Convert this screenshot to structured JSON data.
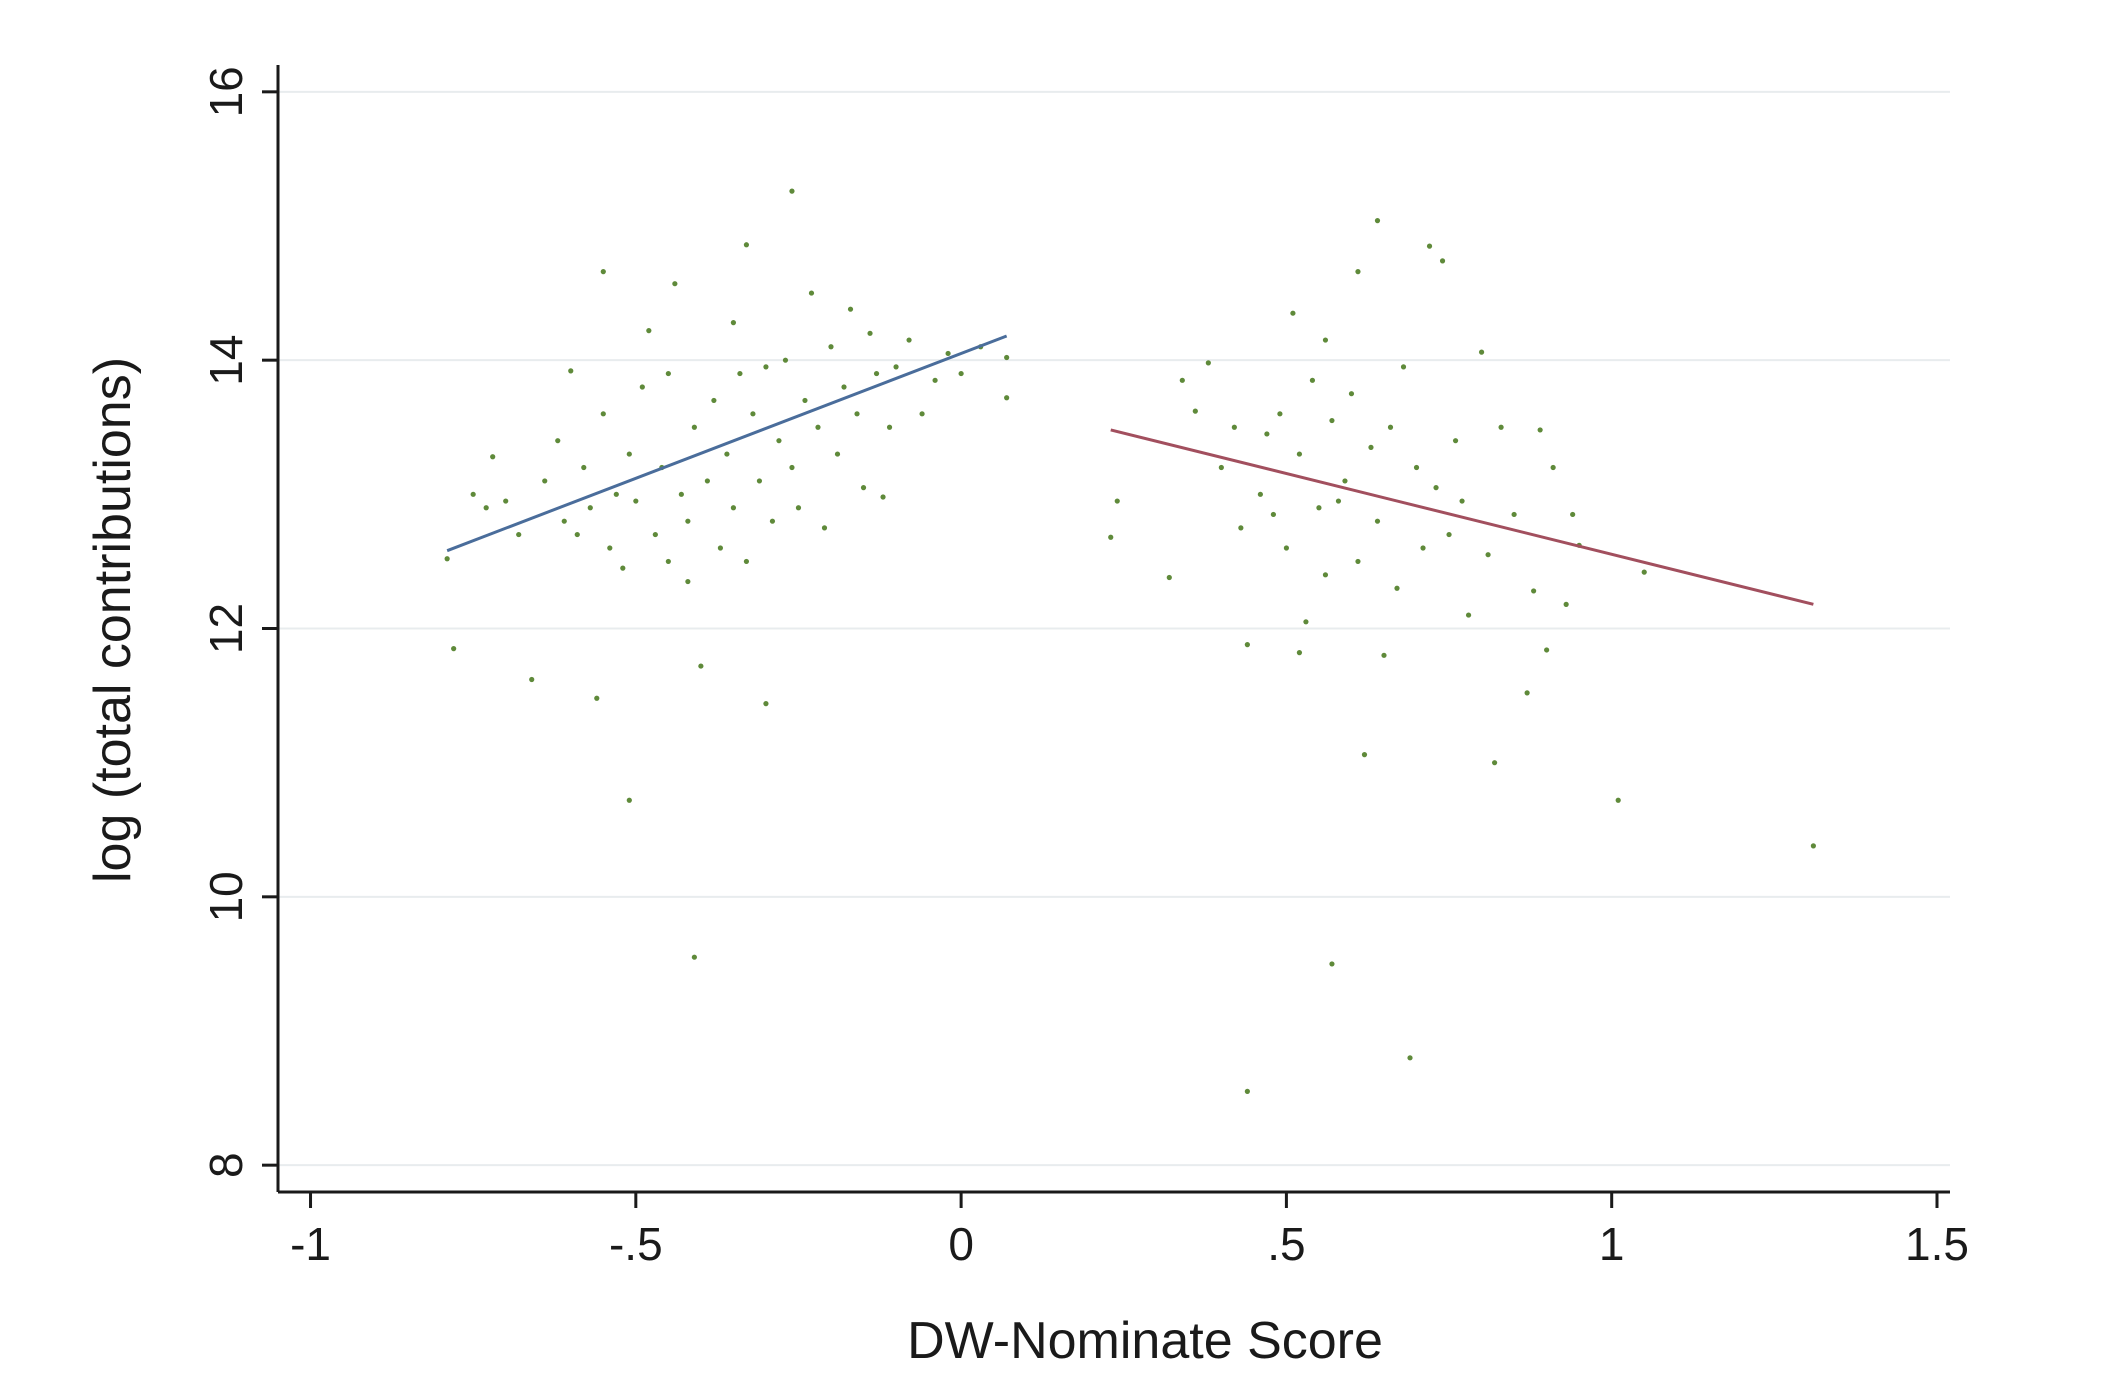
{
  "chart_data": {
    "type": "scatter",
    "title": "",
    "xlabel": "DW-Nominate Score",
    "ylabel": "log (total contributions)",
    "xlim": [
      -1.05,
      1.52
    ],
    "ylim": [
      7.8,
      16.2
    ],
    "grid": true,
    "x_ticks": [
      {
        "value": -1,
        "label": "-1"
      },
      {
        "value": -0.5,
        "label": "-.5"
      },
      {
        "value": 0,
        "label": "0"
      },
      {
        "value": 0.5,
        "label": ".5"
      },
      {
        "value": 1,
        "label": "1"
      },
      {
        "value": 1.5,
        "label": "1.5"
      }
    ],
    "y_ticks": [
      {
        "value": 8,
        "label": "8"
      },
      {
        "value": 10,
        "label": "10"
      },
      {
        "value": 12,
        "label": "12"
      },
      {
        "value": 14,
        "label": "14"
      },
      {
        "value": 16,
        "label": "16"
      }
    ],
    "colors": {
      "points": "#5f8a3a",
      "fit_left": "#4a6d9b",
      "fit_right": "#a24f5e",
      "grid": "#e8ecee",
      "axis": "#1a1a1a"
    },
    "points": [
      [
        -0.79,
        12.52
      ],
      [
        -0.78,
        11.85
      ],
      [
        -0.75,
        13.0
      ],
      [
        -0.73,
        12.9
      ],
      [
        -0.72,
        13.28
      ],
      [
        -0.7,
        12.95
      ],
      [
        -0.68,
        12.7
      ],
      [
        -0.66,
        11.62
      ],
      [
        -0.64,
        13.1
      ],
      [
        -0.62,
        13.4
      ],
      [
        -0.61,
        12.8
      ],
      [
        -0.6,
        13.92
      ],
      [
        -0.59,
        12.7
      ],
      [
        -0.58,
        13.2
      ],
      [
        -0.57,
        12.9
      ],
      [
        -0.56,
        11.48
      ],
      [
        -0.55,
        13.6
      ],
      [
        -0.55,
        14.66
      ],
      [
        -0.54,
        12.6
      ],
      [
        -0.53,
        13.0
      ],
      [
        -0.52,
        12.45
      ],
      [
        -0.51,
        13.3
      ],
      [
        -0.51,
        10.72
      ],
      [
        -0.5,
        12.95
      ],
      [
        -0.49,
        13.8
      ],
      [
        -0.48,
        14.22
      ],
      [
        -0.47,
        12.7
      ],
      [
        -0.46,
        13.2
      ],
      [
        -0.45,
        12.5
      ],
      [
        -0.45,
        13.9
      ],
      [
        -0.44,
        14.57
      ],
      [
        -0.43,
        13.0
      ],
      [
        -0.42,
        12.8
      ],
      [
        -0.42,
        12.35
      ],
      [
        -0.41,
        13.5
      ],
      [
        -0.41,
        9.55
      ],
      [
        -0.4,
        11.72
      ],
      [
        -0.39,
        13.1
      ],
      [
        -0.38,
        13.7
      ],
      [
        -0.37,
        12.6
      ],
      [
        -0.36,
        13.3
      ],
      [
        -0.35,
        12.9
      ],
      [
        -0.35,
        14.28
      ],
      [
        -0.34,
        13.9
      ],
      [
        -0.33,
        12.5
      ],
      [
        -0.33,
        14.86
      ],
      [
        -0.32,
        13.6
      ],
      [
        -0.31,
        13.1
      ],
      [
        -0.3,
        13.95
      ],
      [
        -0.3,
        11.44
      ],
      [
        -0.29,
        12.8
      ],
      [
        -0.28,
        13.4
      ],
      [
        -0.27,
        14.0
      ],
      [
        -0.26,
        13.2
      ],
      [
        -0.26,
        15.26
      ],
      [
        -0.25,
        12.9
      ],
      [
        -0.24,
        13.7
      ],
      [
        -0.23,
        14.5
      ],
      [
        -0.22,
        13.5
      ],
      [
        -0.21,
        12.75
      ],
      [
        -0.2,
        14.1
      ],
      [
        -0.19,
        13.3
      ],
      [
        -0.18,
        13.8
      ],
      [
        -0.17,
        14.38
      ],
      [
        -0.16,
        13.6
      ],
      [
        -0.15,
        13.05
      ],
      [
        -0.14,
        14.2
      ],
      [
        -0.13,
        13.9
      ],
      [
        -0.12,
        12.98
      ],
      [
        -0.11,
        13.5
      ],
      [
        -0.1,
        13.95
      ],
      [
        -0.08,
        14.15
      ],
      [
        -0.06,
        13.6
      ],
      [
        -0.04,
        13.85
      ],
      [
        -0.02,
        14.05
      ],
      [
        0.0,
        13.9
      ],
      [
        0.03,
        14.1
      ],
      [
        0.07,
        14.02
      ],
      [
        0.07,
        13.72
      ],
      [
        0.23,
        12.68
      ],
      [
        0.24,
        12.95
      ],
      [
        0.32,
        12.38
      ],
      [
        0.34,
        13.85
      ],
      [
        0.36,
        13.62
      ],
      [
        0.38,
        13.98
      ],
      [
        0.4,
        13.2
      ],
      [
        0.42,
        13.5
      ],
      [
        0.43,
        12.75
      ],
      [
        0.44,
        11.88
      ],
      [
        0.44,
        8.55
      ],
      [
        0.46,
        13.0
      ],
      [
        0.47,
        13.45
      ],
      [
        0.48,
        12.85
      ],
      [
        0.49,
        13.6
      ],
      [
        0.5,
        12.6
      ],
      [
        0.51,
        14.35
      ],
      [
        0.52,
        11.82
      ],
      [
        0.52,
        13.3
      ],
      [
        0.53,
        12.05
      ],
      [
        0.54,
        13.85
      ],
      [
        0.55,
        12.9
      ],
      [
        0.56,
        14.15
      ],
      [
        0.56,
        12.4
      ],
      [
        0.57,
        13.55
      ],
      [
        0.57,
        9.5
      ],
      [
        0.58,
        12.95
      ],
      [
        0.59,
        13.1
      ],
      [
        0.6,
        13.75
      ],
      [
        0.61,
        12.5
      ],
      [
        0.61,
        14.66
      ],
      [
        0.62,
        11.06
      ],
      [
        0.63,
        13.35
      ],
      [
        0.64,
        12.8
      ],
      [
        0.64,
        15.04
      ],
      [
        0.65,
        11.8
      ],
      [
        0.66,
        13.5
      ],
      [
        0.67,
        12.3
      ],
      [
        0.68,
        13.95
      ],
      [
        0.69,
        8.8
      ],
      [
        0.7,
        13.2
      ],
      [
        0.71,
        12.6
      ],
      [
        0.72,
        14.85
      ],
      [
        0.73,
        13.05
      ],
      [
        0.74,
        14.74
      ],
      [
        0.75,
        12.7
      ],
      [
        0.76,
        13.4
      ],
      [
        0.77,
        12.95
      ],
      [
        0.78,
        12.1
      ],
      [
        0.8,
        14.06
      ],
      [
        0.81,
        12.55
      ],
      [
        0.82,
        11.0
      ],
      [
        0.83,
        13.5
      ],
      [
        0.85,
        12.85
      ],
      [
        0.87,
        11.52
      ],
      [
        0.88,
        12.28
      ],
      [
        0.89,
        13.48
      ],
      [
        0.9,
        11.84
      ],
      [
        0.91,
        13.2
      ],
      [
        0.93,
        12.18
      ],
      [
        0.94,
        12.85
      ],
      [
        0.95,
        12.62
      ],
      [
        1.01,
        10.72
      ],
      [
        1.05,
        12.42
      ],
      [
        1.31,
        10.38
      ]
    ],
    "fit_lines": [
      {
        "x": [
          -0.79,
          0.07
        ],
        "y": [
          12.58,
          14.18
        ]
      },
      {
        "x": [
          0.23,
          1.31
        ],
        "y": [
          13.48,
          12.18
        ]
      }
    ]
  }
}
